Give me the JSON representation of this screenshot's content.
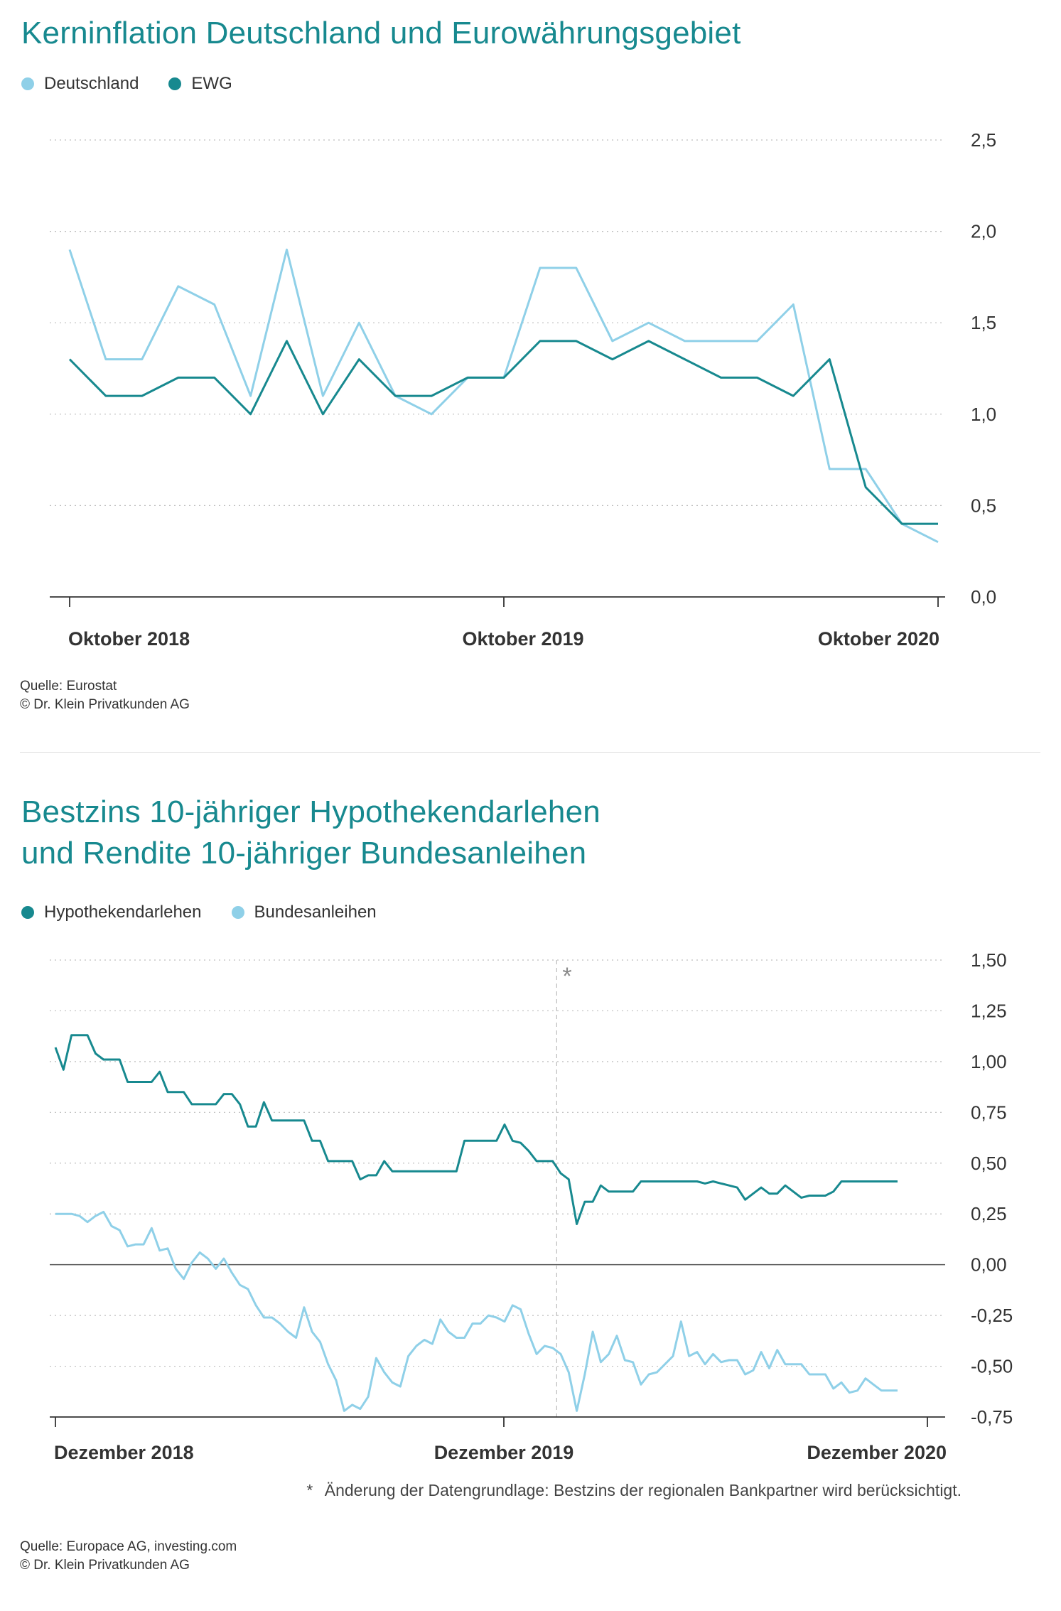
{
  "colors": {
    "teal": "#17898f",
    "light_blue": "#8fd0e8",
    "title": "#17898f",
    "grid": "#bbbbbb"
  },
  "chart1": {
    "title": "Kerninflation Deutschland und Eurowährungsgebiet",
    "legend": [
      {
        "label": "Deutschland",
        "color": "#8fd0e8"
      },
      {
        "label": "EWG",
        "color": "#17898f"
      }
    ],
    "source_line1": "Quelle: Eurostat",
    "source_line2": "© Dr. Klein Privatkunden AG"
  },
  "chart2": {
    "title_line1": "Bestzins 10-jähriger Hypothekendarlehen",
    "title_line2": "und Rendite 10-jähriger Bundesanleihen",
    "legend": [
      {
        "label": "Hypothekendarlehen",
        "color": "#17898f"
      },
      {
        "label": "Bundesanleihen",
        "color": "#8fd0e8"
      }
    ],
    "annotation_marker": "*",
    "footnote_star": "*",
    "footnote_text": "Änderung der Datengrundlage: Bestzins der regionalen Bankpartner wird berücksichtigt.",
    "source_line1": "Quelle: Europace AG, investing.com",
    "source_line2": "© Dr. Klein Privatkunden AG"
  },
  "chart_data": [
    {
      "type": "line",
      "title": "Kerninflation Deutschland und Eurowährungsgebiet",
      "x_start": "2018-10",
      "x_ticks": [
        "Oktober 2018",
        "Oktober 2019",
        "Oktober 2020"
      ],
      "y_ticks": [
        "0,0",
        "0,5",
        "1,0",
        "1,5",
        "2,0",
        "2,5"
      ],
      "ylim": [
        0,
        2.5
      ],
      "series": [
        {
          "name": "Deutschland",
          "color": "#8fd0e8",
          "values": [
            1.9,
            1.3,
            1.3,
            1.7,
            1.6,
            1.1,
            1.9,
            1.1,
            1.5,
            1.1,
            1.0,
            1.2,
            1.2,
            1.8,
            1.8,
            1.4,
            1.5,
            1.4,
            1.4,
            1.4,
            1.6,
            0.7,
            0.7,
            0.4,
            0.3
          ]
        },
        {
          "name": "EWG",
          "color": "#17898f",
          "values": [
            1.3,
            1.1,
            1.1,
            1.2,
            1.2,
            1.0,
            1.4,
            1.0,
            1.3,
            1.1,
            1.1,
            1.2,
            1.2,
            1.4,
            1.4,
            1.3,
            1.4,
            1.3,
            1.2,
            1.2,
            1.1,
            1.3,
            0.6,
            0.4,
            0.4
          ]
        }
      ]
    },
    {
      "type": "line",
      "title": "Bestzins 10-jähriger Hypothekendarlehen und Rendite 10-jähriger Bundesanleihen",
      "x_start": "2018-12",
      "x_ticks": [
        "Dezember 2018",
        "Dezember 2019",
        "Dezember 2020"
      ],
      "y_ticks": [
        "-0,75",
        "-0,50",
        "-0,25",
        "0,00",
        "0,25",
        "0,50",
        "0,75",
        "1,00",
        "1,25",
        "1,50"
      ],
      "ylim": [
        -0.75,
        1.5
      ],
      "annotation_x_index": 62,
      "series": [
        {
          "name": "Hypothekendarlehen",
          "color": "#17898f",
          "values": [
            1.07,
            0.96,
            1.13,
            1.13,
            1.13,
            1.04,
            1.01,
            1.01,
            1.01,
            0.9,
            0.9,
            0.9,
            0.9,
            0.95,
            0.85,
            0.85,
            0.85,
            0.79,
            0.79,
            0.79,
            0.79,
            0.84,
            0.84,
            0.79,
            0.68,
            0.68,
            0.8,
            0.71,
            0.71,
            0.71,
            0.71,
            0.71,
            0.61,
            0.61,
            0.51,
            0.51,
            0.51,
            0.51,
            0.42,
            0.44,
            0.44,
            0.51,
            0.46,
            0.46,
            0.46,
            0.46,
            0.46,
            0.46,
            0.46,
            0.46,
            0.46,
            0.61,
            0.61,
            0.61,
            0.61,
            0.61,
            0.69,
            0.61,
            0.6,
            0.56,
            0.51,
            0.51,
            0.51,
            0.45,
            0.42,
            0.2,
            0.31,
            0.31,
            0.39,
            0.36,
            0.36,
            0.36,
            0.36,
            0.41,
            0.41,
            0.41,
            0.41,
            0.41,
            0.41,
            0.41,
            0.41,
            0.4,
            0.41,
            0.4,
            0.39,
            0.38,
            0.32,
            0.35,
            0.38,
            0.35,
            0.35,
            0.39,
            0.36,
            0.33,
            0.34,
            0.34,
            0.34,
            0.36,
            0.41,
            0.41,
            0.41,
            0.41,
            0.41,
            0.41,
            0.41,
            0.41
          ]
        },
        {
          "name": "Bundesanleihen",
          "color": "#8fd0e8",
          "values": [
            0.25,
            0.25,
            0.25,
            0.24,
            0.21,
            0.24,
            0.26,
            0.19,
            0.17,
            0.09,
            0.1,
            0.1,
            0.18,
            0.07,
            0.08,
            -0.02,
            -0.07,
            0.01,
            0.06,
            0.03,
            -0.02,
            0.03,
            -0.04,
            -0.1,
            -0.12,
            -0.2,
            -0.26,
            -0.26,
            -0.29,
            -0.33,
            -0.36,
            -0.21,
            -0.33,
            -0.38,
            -0.49,
            -0.57,
            -0.72,
            -0.69,
            -0.71,
            -0.65,
            -0.46,
            -0.53,
            -0.58,
            -0.6,
            -0.45,
            -0.4,
            -0.37,
            -0.39,
            -0.27,
            -0.33,
            -0.36,
            -0.36,
            -0.29,
            -0.29,
            -0.25,
            -0.26,
            -0.28,
            -0.2,
            -0.22,
            -0.34,
            -0.44,
            -0.4,
            -0.41,
            -0.44,
            -0.53,
            -0.72,
            -0.54,
            -0.33,
            -0.48,
            -0.44,
            -0.35,
            -0.47,
            -0.48,
            -0.59,
            -0.54,
            -0.53,
            -0.49,
            -0.45,
            -0.28,
            -0.45,
            -0.43,
            -0.49,
            -0.44,
            -0.48,
            -0.47,
            -0.47,
            -0.54,
            -0.52,
            -0.43,
            -0.51,
            -0.42,
            -0.49,
            -0.49,
            -0.49,
            -0.54,
            -0.54,
            -0.54,
            -0.61,
            -0.58,
            -0.63,
            -0.62,
            -0.56,
            -0.59,
            -0.62,
            -0.62,
            -0.62
          ]
        }
      ]
    }
  ]
}
